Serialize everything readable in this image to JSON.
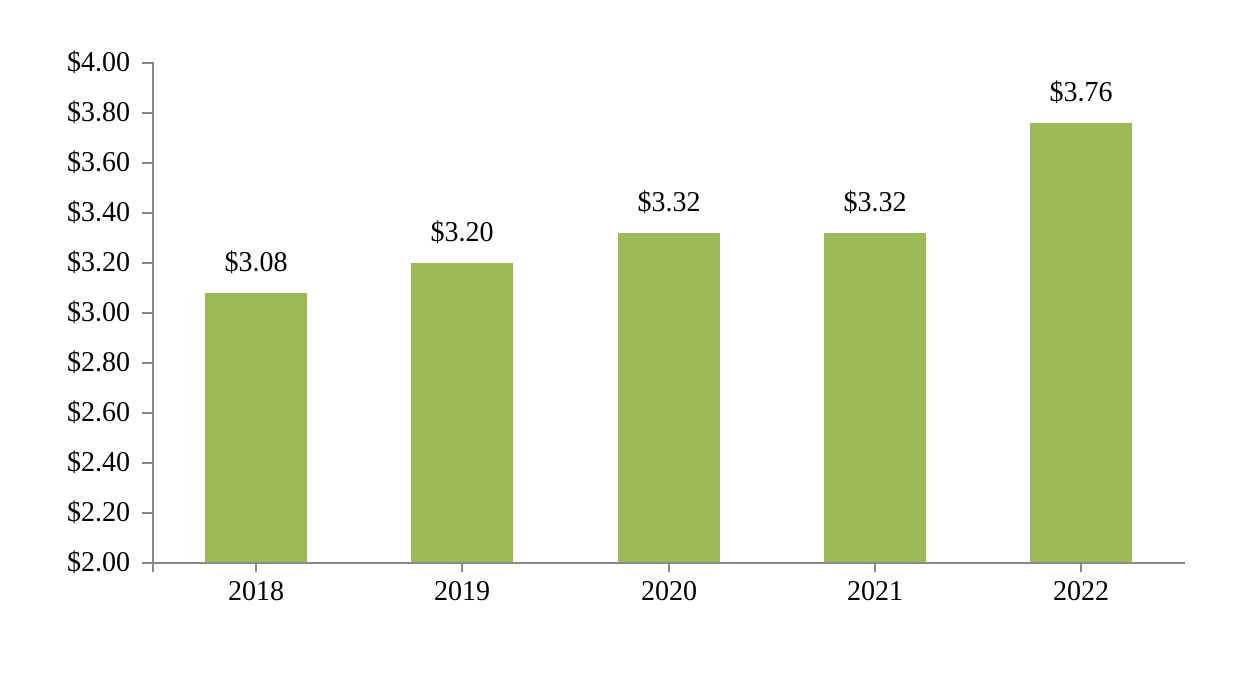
{
  "chart_data": {
    "type": "bar",
    "title": "",
    "xlabel": "",
    "ylabel": "",
    "categories": [
      "2018",
      "2019",
      "2020",
      "2021",
      "2022"
    ],
    "values": [
      3.08,
      3.2,
      3.32,
      3.32,
      3.76
    ],
    "value_labels": [
      "$3.08",
      "$3.20",
      "$3.32",
      "$3.32",
      "$3.76"
    ],
    "y_ticks": [
      "$4.00",
      "$3.80",
      "$3.60",
      "$3.40",
      "$3.20",
      "$3.00",
      "$2.80",
      "$2.60",
      "$2.40",
      "$2.20",
      "$2.00"
    ],
    "ylim": [
      2.0,
      4.0
    ],
    "y_tick_step": 0.2,
    "grid": false,
    "legend": "none",
    "colors": {
      "bar": "#9BBB59",
      "axis": "#8A8A8A",
      "text": "#000000",
      "background": "#FFFFFF"
    }
  }
}
